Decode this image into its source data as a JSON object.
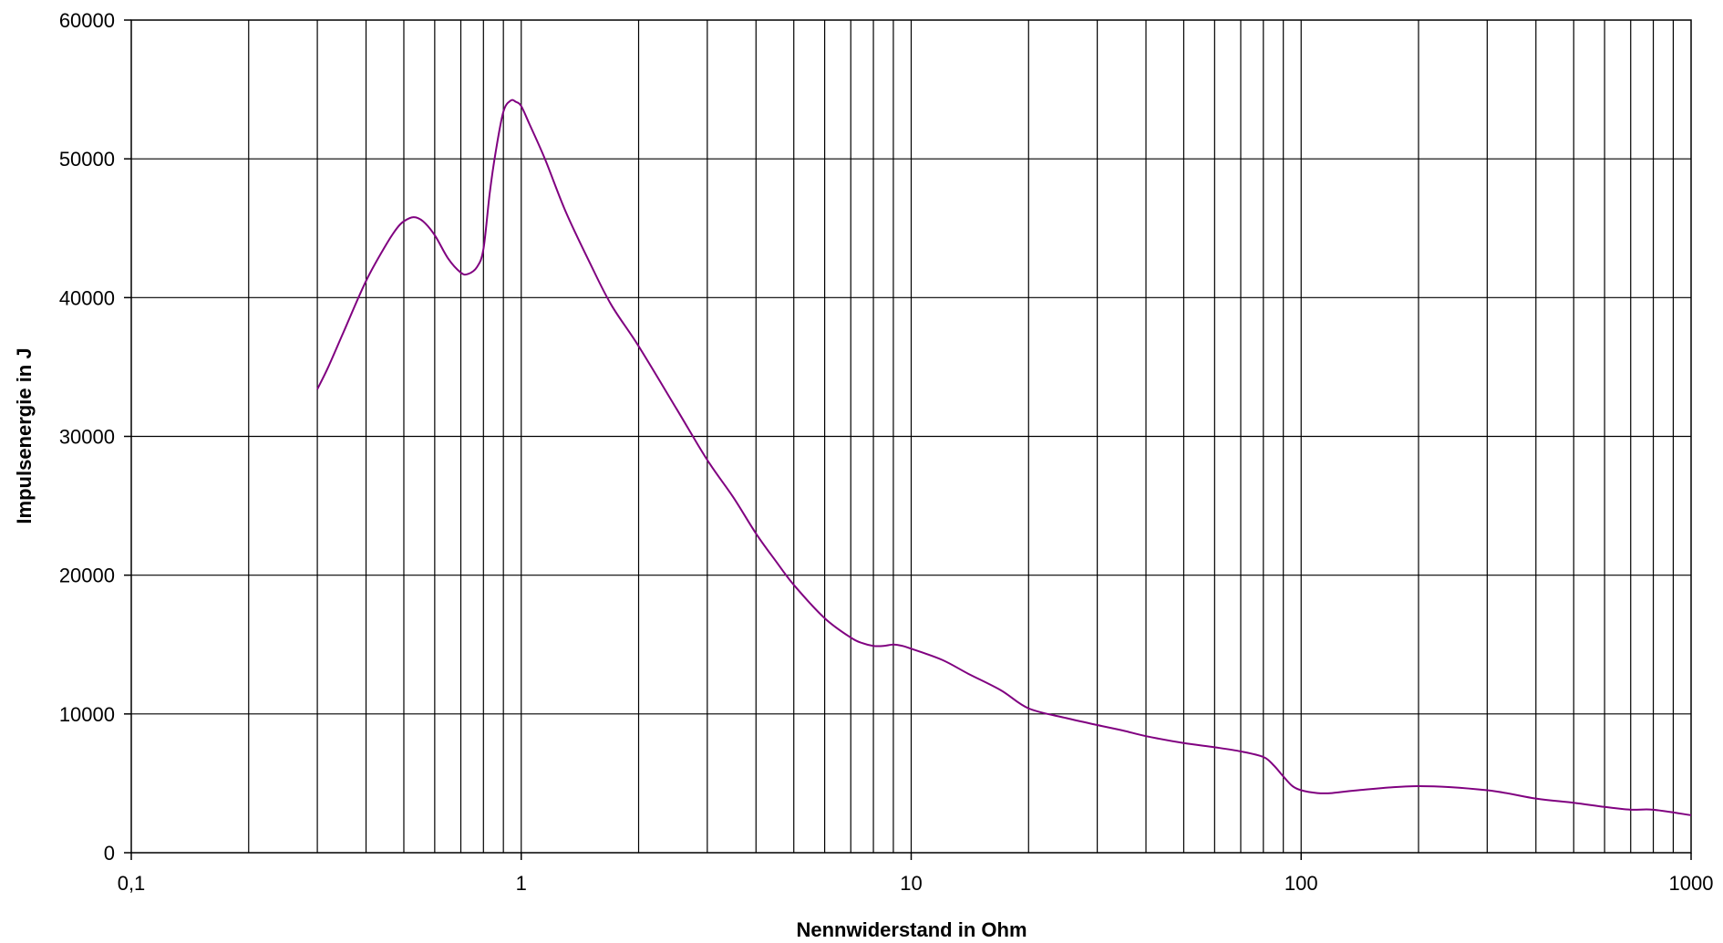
{
  "chart_data": {
    "type": "line",
    "title": "",
    "xlabel": "Nennwiderstand in Ohm",
    "ylabel": "Impulsenergie in J",
    "x_scale": "log",
    "xlim": [
      0.1,
      1000
    ],
    "ylim": [
      0,
      60000
    ],
    "x_ticks": [
      {
        "value": 0.1,
        "label": "0,1"
      },
      {
        "value": 1,
        "label": "1"
      },
      {
        "value": 10,
        "label": "10"
      },
      {
        "value": 100,
        "label": "100"
      },
      {
        "value": 1000,
        "label": "1000"
      }
    ],
    "y_ticks": [
      {
        "value": 0,
        "label": "0"
      },
      {
        "value": 10000,
        "label": "10000"
      },
      {
        "value": 20000,
        "label": "20000"
      },
      {
        "value": 30000,
        "label": "30000"
      },
      {
        "value": 40000,
        "label": "40000"
      },
      {
        "value": 50000,
        "label": "50000"
      },
      {
        "value": 60000,
        "label": "60000"
      }
    ],
    "grid": true,
    "legend": "none",
    "line_color": "#800080",
    "series": [
      {
        "x": [
          0.3,
          0.32,
          0.35,
          0.4,
          0.45,
          0.48,
          0.5,
          0.53,
          0.56,
          0.6,
          0.65,
          0.7,
          0.73,
          0.77,
          0.8,
          0.83,
          0.86,
          0.9,
          0.94,
          0.97,
          1.0,
          1.05,
          1.15,
          1.3,
          1.5,
          1.7,
          2.0,
          2.5,
          3.0,
          3.5,
          4.0,
          4.5,
          5.0,
          6.0,
          7.0,
          7.5,
          8.0,
          8.5,
          9.0,
          9.5,
          10,
          12,
          14,
          17,
          20,
          25,
          30,
          35,
          40,
          50,
          60,
          70,
          80,
          85,
          90,
          95,
          100,
          110,
          120,
          140,
          200,
          300,
          400,
          500,
          600,
          700,
          800,
          1000
        ],
        "y": [
          33400,
          35000,
          37500,
          41200,
          43800,
          45000,
          45500,
          45800,
          45500,
          44500,
          42800,
          41800,
          41700,
          42200,
          43500,
          47500,
          50500,
          53400,
          54200,
          54100,
          53800,
          52500,
          50000,
          46200,
          42500,
          39500,
          36500,
          32000,
          28300,
          25600,
          23000,
          21000,
          19300,
          16900,
          15500,
          15100,
          14900,
          14900,
          15000,
          14900,
          14700,
          13900,
          12900,
          11700,
          10400,
          9700,
          9200,
          8800,
          8400,
          7900,
          7600,
          7300,
          6900,
          6300,
          5500,
          4800,
          4500,
          4300,
          4300,
          4500,
          4800,
          4500,
          3900,
          3600,
          3300,
          3100,
          3100,
          2700
        ]
      }
    ]
  }
}
